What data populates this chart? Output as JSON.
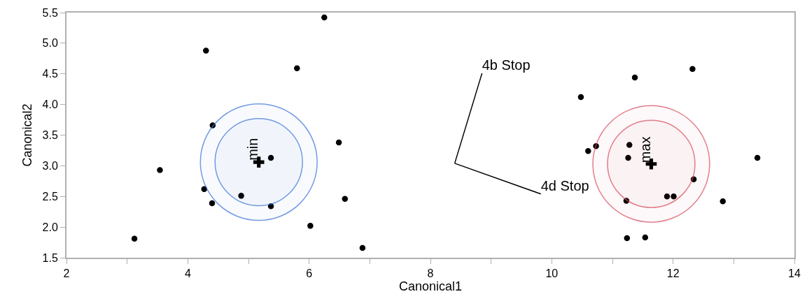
{
  "chart_data": {
    "type": "scatter",
    "xlabel": "Canonical1",
    "ylabel": "Canonical2",
    "xlim": [
      2,
      14
    ],
    "xticks": [
      2,
      {
        "value": 3,
        "label": null
      },
      4,
      {
        "value": 5,
        "label": null
      },
      6,
      {
        "value": 7,
        "label": null
      },
      8,
      {
        "value": 9,
        "label": null
      },
      10,
      {
        "value": 11,
        "label": null
      },
      12,
      {
        "value": 13,
        "label": null
      },
      14
    ],
    "ylim": [
      1.5,
      5.5
    ],
    "yticks": [
      1.5,
      {
        "value": 2,
        "label": "2.0"
      },
      2.5,
      {
        "value": 3,
        "label": "3.0"
      },
      3.5,
      {
        "value": 4,
        "label": "4.0"
      },
      4.5,
      {
        "value": 5,
        "label": "5.0"
      },
      5.5
    ],
    "grid": false,
    "series": [
      {
        "marker": "circle",
        "color": "#000000",
        "x": [
          3.12,
          3.54,
          4.3,
          4.41,
          4.27,
          4.4,
          4.88,
          5.37,
          5.37,
          5.8,
          6.25,
          6.02,
          6.49,
          6.59,
          6.88,
          10.48,
          11.37,
          12.32,
          10.6,
          10.73,
          11.28,
          11.26,
          13.39,
          12.34,
          11.23,
          11.9,
          12.01,
          12.82,
          11.24,
          11.54
        ],
        "values": [
          1.81,
          2.93,
          4.88,
          3.66,
          2.62,
          2.39,
          2.51,
          3.13,
          2.34,
          4.59,
          5.42,
          2.02,
          3.38,
          2.46,
          1.66,
          4.12,
          4.44,
          4.58,
          3.24,
          3.32,
          3.34,
          3.13,
          3.13,
          2.78,
          2.43,
          2.5,
          2.5,
          2.42,
          1.82,
          1.83
        ]
      },
      {
        "type": "bubble",
        "color": "#3a72d8",
        "x": [
          5.17,
          5.17
        ],
        "values": [
          3.06,
          3.06
        ],
        "sizes": [
          0.56,
          1
        ]
      },
      {
        "type": "bubble",
        "color": "#d6485c",
        "x": [
          11.64,
          11.64
        ],
        "values": [
          3.03,
          3.03
        ],
        "sizes": [
          0.56,
          1
        ]
      },
      {
        "type": "scatter",
        "marker": "cross",
        "color": "#000000",
        "x": [
          5.17,
          11.64
        ],
        "values": [
          3.06,
          3.03
        ]
      },
      {
        "type": "line",
        "name": "4b Stop",
        "color": "#000000",
        "x": [
          8.4,
          8.85
        ],
        "values": [
          3.04,
          4.51
        ]
      },
      {
        "type": "line",
        "name": "4d Stop",
        "color": "#000000",
        "x": [
          8.4,
          9.82
        ],
        "values": [
          3.04,
          2.54
        ]
      }
    ],
    "annotations": [
      {
        "text": "min",
        "x": 5.17,
        "y": 3.06
      },
      {
        "text": "max",
        "x": 11.64,
        "y": 3.03
      }
    ]
  }
}
